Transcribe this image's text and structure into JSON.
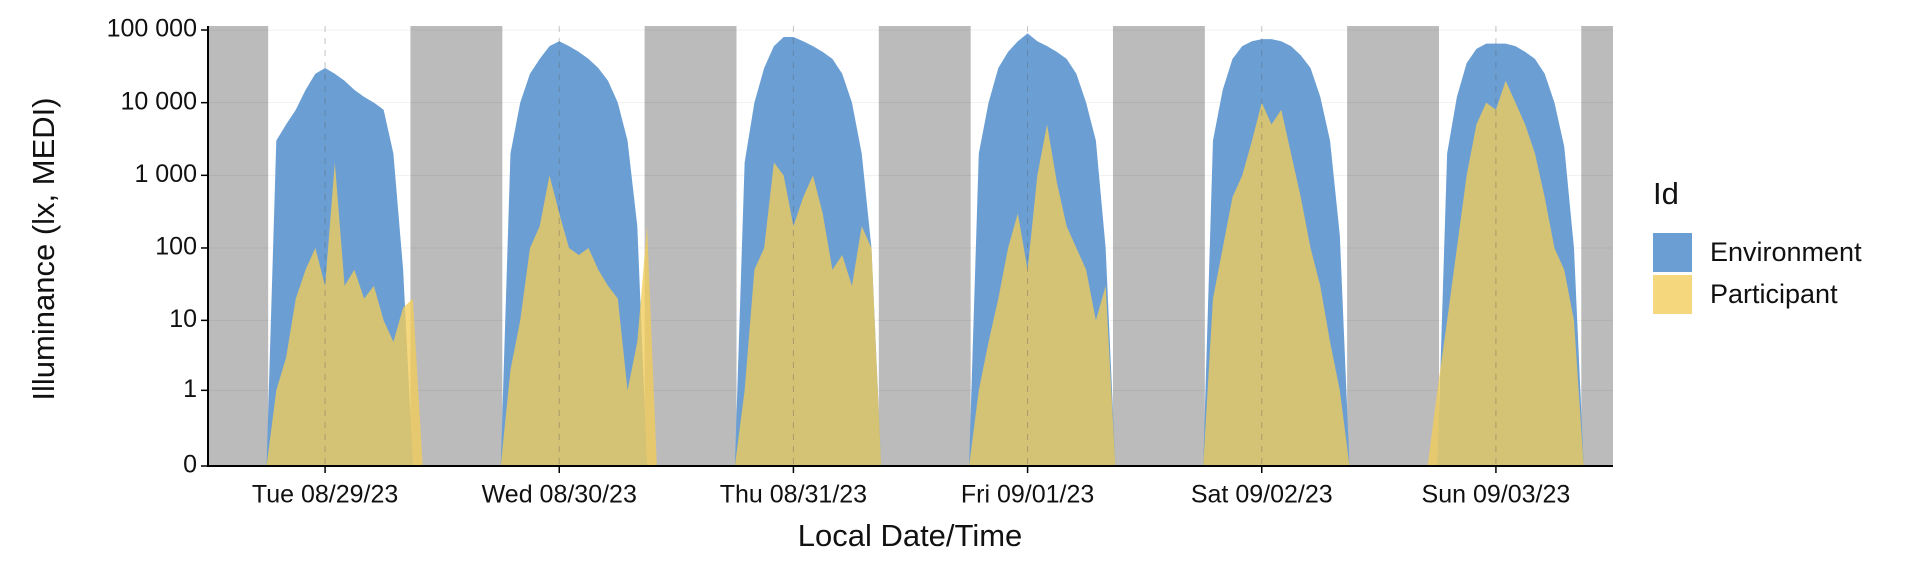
{
  "chart_data": {
    "type": "area",
    "x_label": "Local Date/Time",
    "y_label": "Illuminance (lx, MEDI)",
    "legend_title": "Id",
    "legend_position": "right",
    "grid": true,
    "y_scale": "symlog",
    "xlim": [
      "2023-08-29T00:00",
      "2023-09-04T00:00"
    ],
    "xticks": [
      {
        "value": "2023-08-29T12:00",
        "label": "Tue 08/29/23"
      },
      {
        "value": "2023-08-30T12:00",
        "label": "Wed 08/30/23"
      },
      {
        "value": "2023-08-31T12:00",
        "label": "Thu 08/31/23"
      },
      {
        "value": "2023-09-01T12:00",
        "label": "Fri 09/01/23"
      },
      {
        "value": "2023-09-02T12:00",
        "label": "Sat 09/02/23"
      },
      {
        "value": "2023-09-03T12:00",
        "label": "Sun 09/03/23"
      }
    ],
    "ylim": [
      0,
      100000
    ],
    "yticks": [
      0,
      1,
      10,
      100,
      {
        "value": 1000,
        "label": "1 000"
      },
      {
        "value": 10000,
        "label": "10 000"
      },
      {
        "value": 100000,
        "label": "100 000"
      }
    ],
    "shading_color": "#bbbbbb",
    "shading": [
      [
        "2023-08-29T00:00",
        "2023-08-29T06:10"
      ],
      [
        "2023-08-29T20:45",
        "2023-08-30T06:10"
      ],
      [
        "2023-08-30T20:45",
        "2023-08-31T06:10"
      ],
      [
        "2023-08-31T20:45",
        "2023-09-01T06:10"
      ],
      [
        "2023-09-01T20:45",
        "2023-09-02T06:10"
      ],
      [
        "2023-09-02T20:45",
        "2023-09-03T06:10"
      ],
      [
        "2023-09-03T20:45",
        "2023-09-04T00:00"
      ]
    ],
    "x": [
      "2023-08-29T00:00",
      "2023-08-29T01:00",
      "2023-08-29T02:00",
      "2023-08-29T03:00",
      "2023-08-29T04:00",
      "2023-08-29T05:00",
      "2023-08-29T06:00",
      "2023-08-29T07:00",
      "2023-08-29T08:00",
      "2023-08-29T09:00",
      "2023-08-29T10:00",
      "2023-08-29T11:00",
      "2023-08-29T12:00",
      "2023-08-29T13:00",
      "2023-08-29T14:00",
      "2023-08-29T15:00",
      "2023-08-29T16:00",
      "2023-08-29T17:00",
      "2023-08-29T18:00",
      "2023-08-29T19:00",
      "2023-08-29T20:00",
      "2023-08-29T21:00",
      "2023-08-29T22:00",
      "2023-08-29T23:00",
      "2023-08-30T00:00",
      "2023-08-30T01:00",
      "2023-08-30T02:00",
      "2023-08-30T03:00",
      "2023-08-30T04:00",
      "2023-08-30T05:00",
      "2023-08-30T06:00",
      "2023-08-30T07:00",
      "2023-08-30T08:00",
      "2023-08-30T09:00",
      "2023-08-30T10:00",
      "2023-08-30T11:00",
      "2023-08-30T12:00",
      "2023-08-30T13:00",
      "2023-08-30T14:00",
      "2023-08-30T15:00",
      "2023-08-30T16:00",
      "2023-08-30T17:00",
      "2023-08-30T18:00",
      "2023-08-30T19:00",
      "2023-08-30T20:00",
      "2023-08-30T21:00",
      "2023-08-30T22:00",
      "2023-08-30T23:00",
      "2023-08-31T00:00",
      "2023-08-31T01:00",
      "2023-08-31T02:00",
      "2023-08-31T03:00",
      "2023-08-31T04:00",
      "2023-08-31T05:00",
      "2023-08-31T06:00",
      "2023-08-31T07:00",
      "2023-08-31T08:00",
      "2023-08-31T09:00",
      "2023-08-31T10:00",
      "2023-08-31T11:00",
      "2023-08-31T12:00",
      "2023-08-31T13:00",
      "2023-08-31T14:00",
      "2023-08-31T15:00",
      "2023-08-31T16:00",
      "2023-08-31T17:00",
      "2023-08-31T18:00",
      "2023-08-31T19:00",
      "2023-08-31T20:00",
      "2023-08-31T21:00",
      "2023-08-31T22:00",
      "2023-08-31T23:00",
      "2023-09-01T00:00",
      "2023-09-01T01:00",
      "2023-09-01T02:00",
      "2023-09-01T03:00",
      "2023-09-01T04:00",
      "2023-09-01T05:00",
      "2023-09-01T06:00",
      "2023-09-01T07:00",
      "2023-09-01T08:00",
      "2023-09-01T09:00",
      "2023-09-01T10:00",
      "2023-09-01T11:00",
      "2023-09-01T12:00",
      "2023-09-01T13:00",
      "2023-09-01T14:00",
      "2023-09-01T15:00",
      "2023-09-01T16:00",
      "2023-09-01T17:00",
      "2023-09-01T18:00",
      "2023-09-01T19:00",
      "2023-09-01T20:00",
      "2023-09-01T21:00",
      "2023-09-01T22:00",
      "2023-09-01T23:00",
      "2023-09-02T00:00",
      "2023-09-02T01:00",
      "2023-09-02T02:00",
      "2023-09-02T03:00",
      "2023-09-02T04:00",
      "2023-09-02T05:00",
      "2023-09-02T06:00",
      "2023-09-02T07:00",
      "2023-09-02T08:00",
      "2023-09-02T09:00",
      "2023-09-02T10:00",
      "2023-09-02T11:00",
      "2023-09-02T12:00",
      "2023-09-02T13:00",
      "2023-09-02T14:00",
      "2023-09-02T15:00",
      "2023-09-02T16:00",
      "2023-09-02T17:00",
      "2023-09-02T18:00",
      "2023-09-02T19:00",
      "2023-09-02T20:00",
      "2023-09-02T21:00",
      "2023-09-02T22:00",
      "2023-09-02T23:00",
      "2023-09-03T00:00",
      "2023-09-03T01:00",
      "2023-09-03T02:00",
      "2023-09-03T03:00",
      "2023-09-03T04:00",
      "2023-09-03T05:00",
      "2023-09-03T06:00",
      "2023-09-03T07:00",
      "2023-09-03T08:00",
      "2023-09-03T09:00",
      "2023-09-03T10:00",
      "2023-09-03T11:00",
      "2023-09-03T12:00",
      "2023-09-03T13:00",
      "2023-09-03T14:00",
      "2023-09-03T15:00",
      "2023-09-03T16:00",
      "2023-09-03T17:00",
      "2023-09-03T18:00",
      "2023-09-03T19:00",
      "2023-09-03T20:00",
      "2023-09-03T21:00",
      "2023-09-03T22:00",
      "2023-09-03T23:00"
    ],
    "series": [
      {
        "name": "Environment",
        "color": "#6b9fd4",
        "opacity": 1,
        "values": [
          0,
          0,
          0,
          0,
          0,
          0,
          0,
          3000,
          5000,
          8000,
          15000,
          25000,
          30000,
          25000,
          20000,
          15000,
          12000,
          10000,
          8000,
          2000,
          50,
          0,
          0,
          0,
          0,
          0,
          0,
          0,
          0,
          0,
          0,
          2000,
          10000,
          25000,
          40000,
          60000,
          70000,
          60000,
          50000,
          40000,
          30000,
          20000,
          10000,
          3000,
          200,
          0,
          0,
          0,
          0,
          0,
          0,
          0,
          0,
          0,
          0,
          1500,
          10000,
          30000,
          60000,
          80000,
          80000,
          70000,
          60000,
          50000,
          40000,
          25000,
          10000,
          2000,
          100,
          0,
          0,
          0,
          0,
          0,
          0,
          0,
          0,
          0,
          0,
          2000,
          10000,
          30000,
          50000,
          70000,
          90000,
          70000,
          60000,
          50000,
          40000,
          25000,
          10000,
          3000,
          100,
          0,
          0,
          0,
          0,
          0,
          0,
          0,
          0,
          0,
          0,
          3000,
          15000,
          40000,
          60000,
          70000,
          75000,
          75000,
          70000,
          60000,
          45000,
          30000,
          12000,
          3000,
          150,
          0,
          0,
          0,
          0,
          0,
          0,
          0,
          0,
          0,
          0,
          2000,
          12000,
          35000,
          55000,
          65000,
          65000,
          65000,
          60000,
          50000,
          40000,
          25000,
          10000,
          2500,
          100,
          0,
          0,
          0
        ]
      },
      {
        "name": "Participant",
        "color": "#f2cc5a",
        "opacity": 0.78,
        "values": [
          0,
          0,
          0,
          0,
          0,
          0,
          0,
          1,
          3,
          20,
          50,
          100,
          30,
          1500,
          30,
          50,
          20,
          30,
          10,
          5,
          15,
          20,
          0,
          0,
          0,
          0,
          0,
          0,
          0,
          0,
          0,
          2,
          10,
          100,
          200,
          1000,
          300,
          100,
          80,
          100,
          50,
          30,
          20,
          1,
          5,
          200,
          0,
          0,
          0,
          0,
          0,
          0,
          0,
          0,
          0,
          1,
          50,
          100,
          1500,
          1000,
          200,
          500,
          1000,
          300,
          50,
          80,
          30,
          200,
          100,
          0,
          0,
          0,
          0,
          0,
          0,
          0,
          0,
          0,
          0,
          1,
          5,
          20,
          100,
          300,
          50,
          1000,
          5000,
          800,
          200,
          100,
          50,
          10,
          30,
          0,
          0,
          0,
          0,
          0,
          0,
          0,
          0,
          0,
          0,
          20,
          100,
          500,
          1000,
          3000,
          10000,
          5000,
          8000,
          2000,
          500,
          100,
          30,
          5,
          1,
          0,
          0,
          0,
          0,
          0,
          0,
          0,
          0,
          0,
          1,
          10,
          100,
          1000,
          5000,
          10000,
          8000,
          20000,
          10000,
          5000,
          2000,
          500,
          100,
          50,
          10,
          0,
          0,
          0
        ]
      }
    ]
  }
}
